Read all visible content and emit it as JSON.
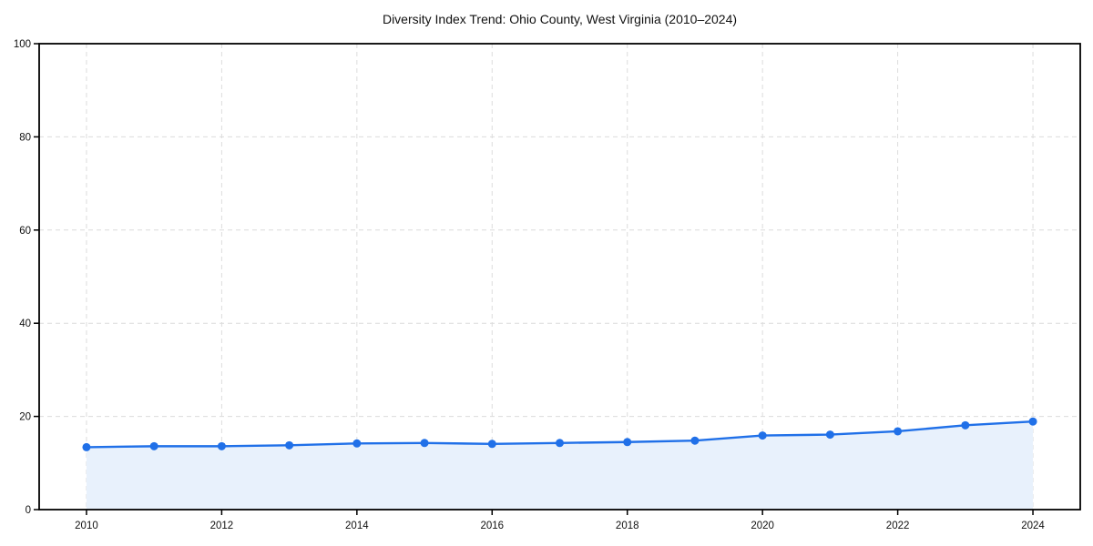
{
  "window": {
    "background_color": "#ffffff"
  },
  "chart_data": {
    "type": "area",
    "title": "Diversity Index Trend: Ohio County, West Virginia (2010–2024)",
    "xlabel": "",
    "ylabel": "",
    "x": [
      2010,
      2011,
      2012,
      2013,
      2014,
      2015,
      2016,
      2017,
      2018,
      2019,
      2020,
      2021,
      2022,
      2023,
      2024
    ],
    "series": [
      {
        "name": "Diversity Index",
        "values": [
          13.4,
          13.6,
          13.6,
          13.8,
          14.2,
          14.3,
          14.1,
          14.3,
          14.5,
          14.8,
          15.9,
          16.1,
          16.8,
          18.1,
          18.9
        ]
      }
    ],
    "xlim": [
      2009.3,
      2024.7
    ],
    "ylim": [
      0,
      100
    ],
    "xticks": [
      2010,
      2012,
      2014,
      2016,
      2018,
      2020,
      2022,
      2024
    ],
    "yticks": [
      0,
      20,
      40,
      60,
      80,
      100
    ],
    "grid": true,
    "grid_style": "dashed",
    "legend_position": "none",
    "colors": {
      "line": "#2070e8",
      "marker": "#2070e8",
      "fill": "#e8f1fc",
      "grid": "#dcdcdc",
      "spine": "#000000",
      "tick_label": "#111111",
      "title": "#111111",
      "plot_background": "#ffffff"
    },
    "style": {
      "line_width": 2.4,
      "marker_radius": 4.5,
      "spine_width": 1.8,
      "tick_length": 6,
      "tick_font_size": 11.5
    }
  }
}
